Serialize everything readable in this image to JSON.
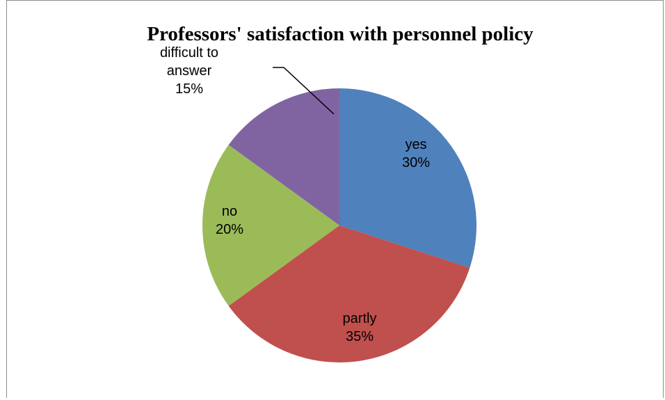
{
  "chart_data": {
    "type": "pie",
    "title": "Professors' satisfaction with personnel policy",
    "slices": [
      {
        "label": "yes",
        "value": 30,
        "percent_label": "30%",
        "color": "#4f81bd"
      },
      {
        "label": "partly",
        "value": 35,
        "percent_label": "35%",
        "color": "#c0504d"
      },
      {
        "label": "no",
        "value": 20,
        "percent_label": "20%",
        "color": "#9bbb59"
      },
      {
        "label": "difficult to answer",
        "label_lines": [
          "difficult to",
          "answer"
        ],
        "value": 15,
        "percent_label": "15%",
        "color": "#8064a2"
      }
    ],
    "start_angle_deg": 0,
    "direction": "clockwise",
    "legend": "none"
  }
}
